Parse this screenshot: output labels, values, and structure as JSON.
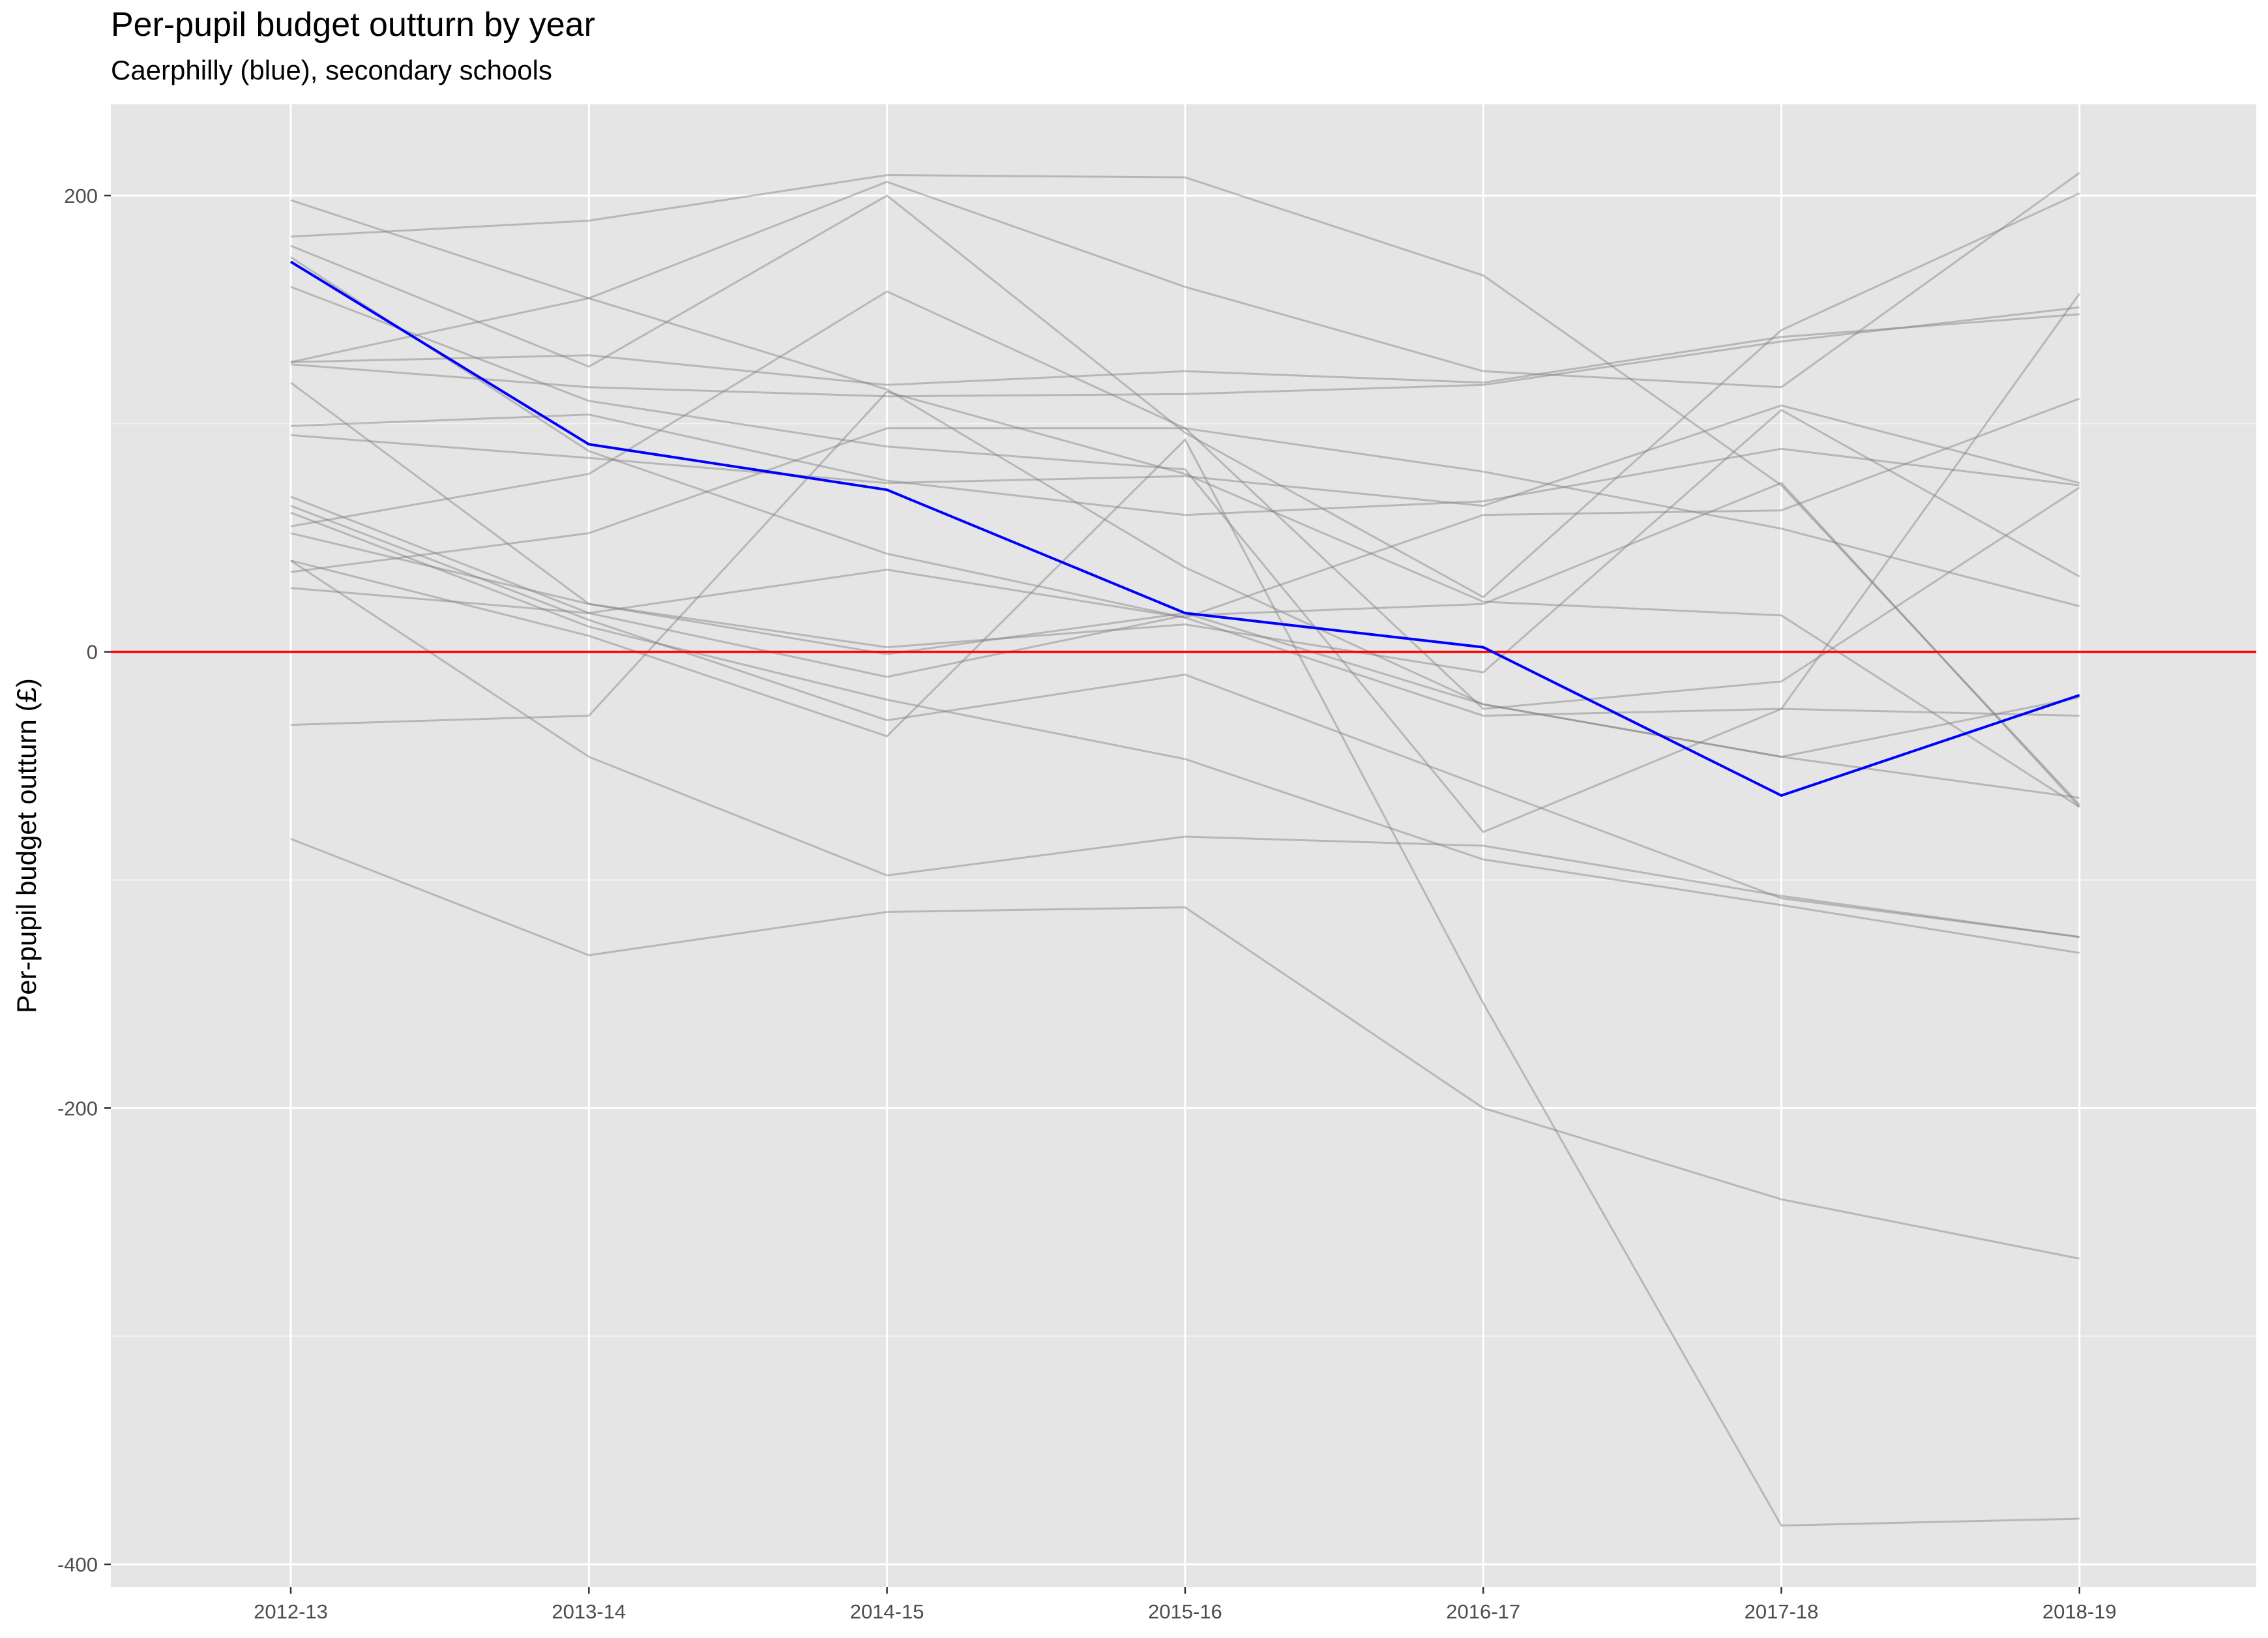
{
  "chart_data": {
    "type": "line",
    "title": "Per-pupil budget outturn by year",
    "subtitle": "Caerphilly (blue), secondary schools",
    "xlabel": "",
    "ylabel": "Per-pupil budget outturn (£)",
    "categories": [
      "2012-13",
      "2013-14",
      "2014-15",
      "2015-16",
      "2016-17",
      "2017-18",
      "2018-19"
    ],
    "ylim": [
      -410,
      240
    ],
    "yticks": [
      200,
      0,
      -200,
      -400
    ],
    "ytick_labels": [
      "200",
      "0",
      "-200",
      "-400"
    ],
    "reference_line": 0,
    "grid": true,
    "colors": {
      "panel_bg": "#e5e5e5",
      "grid_major": "#ffffff",
      "grid_minor": "#f2f2f2",
      "highlight": "#0000ff",
      "other": "#7f7f7f",
      "reference": "#ff0000"
    },
    "highlight": {
      "name": "Caerphilly",
      "values": [
        171,
        91,
        71,
        17,
        2,
        -63,
        -19
      ]
    },
    "series": [
      {
        "values": [
          198,
          155,
          115,
          37,
          -23,
          -46,
          -20
        ]
      },
      {
        "values": [
          182,
          189,
          209,
          208,
          165,
          73,
          -67
        ]
      },
      {
        "values": [
          178,
          125,
          200,
          96,
          24,
          141,
          201
        ]
      },
      {
        "values": [
          173,
          88,
          43,
          15,
          -28,
          -25,
          -28
        ]
      },
      {
        "values": [
          127,
          155,
          206,
          160,
          123,
          116,
          210
        ]
      },
      {
        "values": [
          127,
          130,
          117,
          123,
          118,
          138,
          148
        ]
      },
      {
        "values": [
          126,
          116,
          112,
          113,
          117,
          136,
          151
        ]
      },
      {
        "values": [
          118,
          21,
          2,
          12,
          -9,
          106,
          33
        ]
      },
      {
        "values": [
          99,
          104,
          75,
          60,
          66,
          89,
          73
        ]
      },
      {
        "values": [
          95,
          85,
          74,
          77,
          64,
          108,
          74
        ]
      },
      {
        "values": [
          68,
          17,
          -11,
          16,
          21,
          74,
          -68
        ]
      },
      {
        "values": [
          64,
          14,
          -30,
          -10,
          -59,
          -108,
          -125
        ]
      },
      {
        "values": [
          61,
          11,
          -21,
          -47,
          -91,
          -111,
          -132
        ]
      },
      {
        "values": [
          52,
          21,
          -1,
          17,
          -23,
          -46,
          -64
        ]
      },
      {
        "values": [
          55,
          78,
          158,
          98,
          79,
          54,
          20
        ]
      },
      {
        "values": [
          40,
          7,
          -37,
          93,
          -154,
          -383,
          -380
        ]
      },
      {
        "values": [
          28,
          17,
          36,
          15,
          60,
          62,
          111
        ]
      },
      {
        "values": [
          40,
          -46,
          -98,
          -81,
          -85,
          -107,
          -125
        ]
      },
      {
        "values": [
          35,
          52,
          98,
          98,
          -25,
          -13,
          72
        ]
      },
      {
        "values": [
          -32,
          -28,
          114,
          78,
          22,
          16,
          -68
        ]
      },
      {
        "values": [
          -82,
          -133,
          -114,
          -112,
          -200,
          -240,
          -266
        ]
      },
      {
        "values": [
          160,
          110,
          90,
          80,
          -79,
          -25,
          157
        ]
      }
    ]
  }
}
